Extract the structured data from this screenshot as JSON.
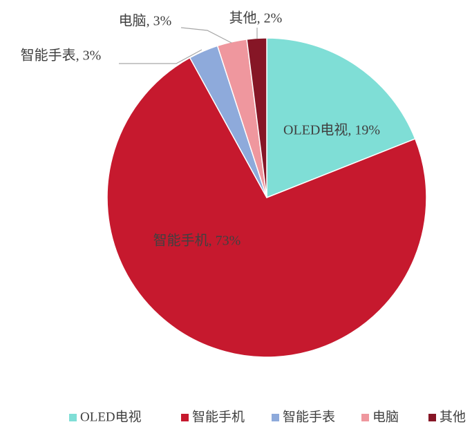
{
  "chart_data": {
    "type": "pie",
    "categories": [
      "OLED电视",
      "智能手机",
      "智能手表",
      "电脑",
      "其他"
    ],
    "values": [
      19,
      73,
      3,
      3,
      2
    ],
    "value_labels": [
      "OLED电视, 19%",
      "智能手机, 73%",
      "智能手表, 3%",
      "电脑, 3%",
      "其他, 2%"
    ],
    "colors": [
      "#7fded6",
      "#c6192e",
      "#8eaadb",
      "#ef979e",
      "#861626"
    ],
    "legend": "bottom"
  }
}
